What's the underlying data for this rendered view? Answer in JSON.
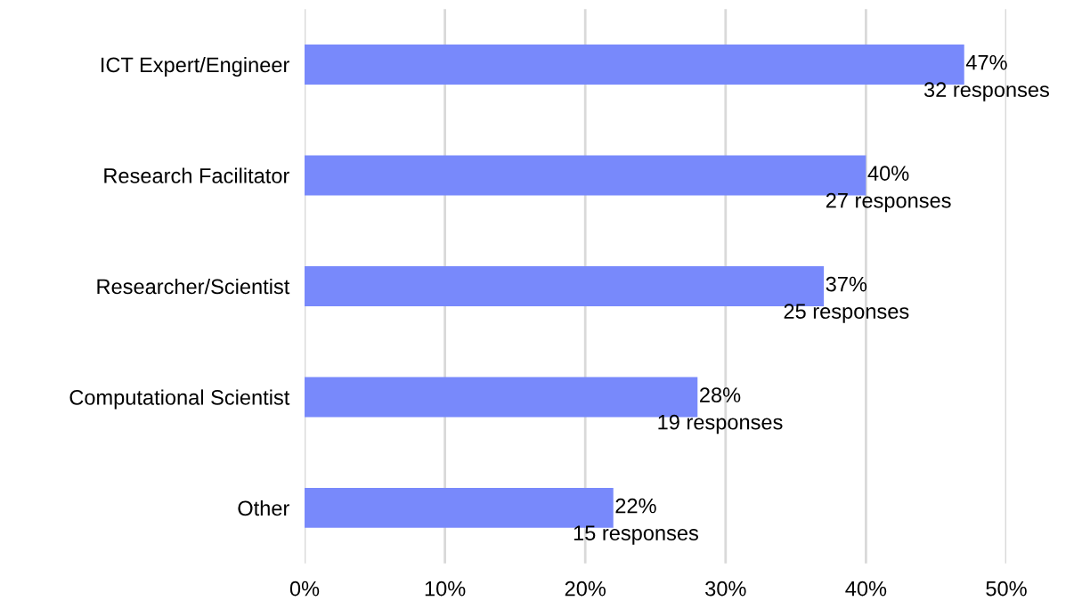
{
  "chart_data": {
    "type": "bar",
    "orientation": "horizontal",
    "categories": [
      "ICT Expert/Engineer",
      "Research Facilitator",
      "Researcher/Scientist",
      "Computational Scientist",
      "Other"
    ],
    "values": [
      47,
      40,
      37,
      28,
      22
    ],
    "value_labels": [
      "47%\n32 responses",
      "40%\n27 responses",
      "37%\n25 responses",
      "28%\n19 responses",
      "22%\n15 responses"
    ],
    "color": "#7889fb",
    "xlim": [
      0,
      50
    ],
    "xticks": [
      {
        "value": 0,
        "label": "0%"
      },
      {
        "value": 10,
        "label": "10%"
      },
      {
        "value": 20,
        "label": "20%"
      },
      {
        "value": 30,
        "label": "30%"
      },
      {
        "value": 40,
        "label": "40%"
      },
      {
        "value": 50,
        "label": "50%"
      }
    ],
    "grid": "x"
  }
}
